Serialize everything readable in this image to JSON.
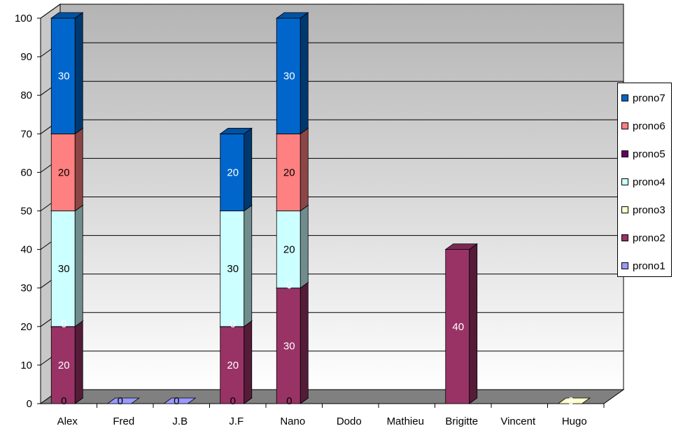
{
  "chart_data": {
    "type": "bar",
    "stacked": true,
    "three_d": true,
    "title": "",
    "xlabel": "",
    "ylabel": "",
    "ylim": [
      0,
      100
    ],
    "y_ticks": [
      0,
      10,
      20,
      30,
      40,
      50,
      60,
      70,
      80,
      90,
      100
    ],
    "grid": true,
    "legend_position": "right",
    "categories": [
      "Alex",
      "Fred",
      "J.B",
      "J.F",
      "Nano",
      "Dodo",
      "Mathieu",
      "Brigitte",
      "Vincent",
      "Hugo"
    ],
    "series": [
      {
        "name": "prono1",
        "color": "#9999ff",
        "values": [
          0,
          0,
          0,
          0,
          0,
          null,
          null,
          null,
          null,
          null
        ]
      },
      {
        "name": "prono2",
        "color": "#993366",
        "values": [
          20,
          null,
          null,
          20,
          30,
          null,
          null,
          40,
          null,
          null
        ]
      },
      {
        "name": "prono3",
        "color": "#ffffcc",
        "values": [
          0,
          null,
          null,
          0,
          0,
          null,
          null,
          null,
          null,
          0
        ]
      },
      {
        "name": "prono4",
        "color": "#ccffff",
        "values": [
          30,
          null,
          null,
          30,
          20,
          null,
          null,
          null,
          null,
          null
        ]
      },
      {
        "name": "prono5",
        "color": "#660066",
        "values": [
          null,
          null,
          null,
          null,
          null,
          null,
          null,
          null,
          null,
          null
        ]
      },
      {
        "name": "prono6",
        "color": "#ff8080",
        "values": [
          20,
          null,
          null,
          null,
          20,
          null,
          null,
          null,
          null,
          null
        ]
      },
      {
        "name": "prono7",
        "color": "#0066cc",
        "values": [
          30,
          null,
          null,
          20,
          30,
          null,
          null,
          null,
          null,
          null
        ]
      }
    ]
  }
}
